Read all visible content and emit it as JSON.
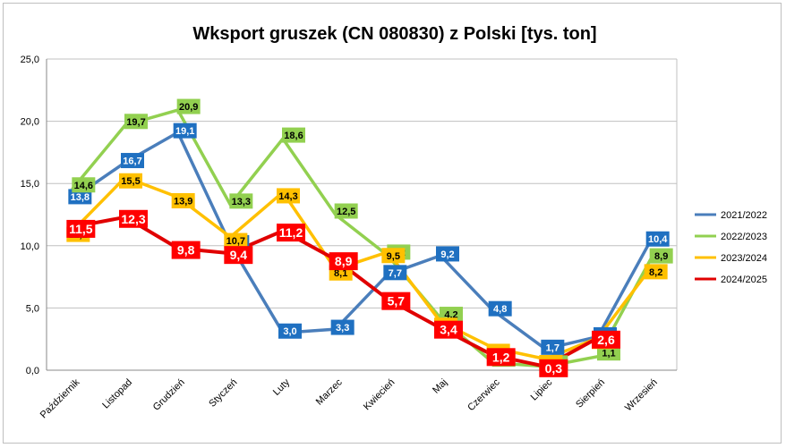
{
  "chart_data": {
    "type": "line",
    "title": "Wksport gruszek (CN 080830) z Polski [tys. ton]",
    "categories": [
      "Październik",
      "Listopad",
      "Grudzień",
      "Styczeń",
      "Luty",
      "Marzec",
      "Kwiecień",
      "Maj",
      "Czerwiec",
      "Lipiec",
      "Sierpień",
      "Wrzesień"
    ],
    "ylim": [
      0,
      25
    ],
    "yticks": [
      "0,0",
      "5,0",
      "10,0",
      "15,0",
      "20,0",
      "25,0"
    ],
    "grid": true,
    "legend_position": "right",
    "series": [
      {
        "name": "2021/2022",
        "color": "#4a7ebb",
        "label_bg": "#1f70c1",
        "label_fg": "#ffffff",
        "values": [
          13.8,
          16.7,
          19.1,
          10.1,
          3.0,
          3.3,
          7.7,
          9.2,
          4.8,
          1.7,
          2.7,
          10.4
        ],
        "labels": [
          "13,8",
          "16,7",
          "19,1",
          "10,1",
          "3,0",
          "3,3",
          "7,7",
          "9,2",
          "4,8",
          "1,7",
          "2,7",
          "10,4"
        ]
      },
      {
        "name": "2022/2023",
        "color": "#92d050",
        "label_bg": "#92d050",
        "label_fg": "#000000",
        "values": [
          14.6,
          19.7,
          20.9,
          13.3,
          18.6,
          12.5,
          9.2,
          4.2,
          0.6,
          0.3,
          1.1,
          8.9
        ],
        "labels": [
          "14,6",
          "19,7",
          "20,9",
          "13,3",
          "18,6",
          "12,5",
          "9,2",
          "4,2",
          "0,6",
          "0,3",
          "1,1",
          "8,9"
        ]
      },
      {
        "name": "2023/2024",
        "color": "#ffc000",
        "label_bg": "#ffc000",
        "label_fg": "#000000",
        "values": [
          11.2,
          15.5,
          13.9,
          10.7,
          14.3,
          8.1,
          9.5,
          3.9,
          1.8,
          0.9,
          2.6,
          8.2
        ],
        "labels": [
          "11,2",
          "15,5",
          "13,9",
          "10,7",
          "14,3",
          "8,1",
          "9,5",
          "3,9",
          "1,8",
          "0,9",
          "2,6",
          "8,2"
        ]
      },
      {
        "name": "2024/2025",
        "color": "#e00000",
        "label_bg": "#ff0000",
        "label_fg": "#ffffff",
        "values": [
          11.5,
          12.3,
          9.8,
          9.4,
          11.2,
          8.9,
          5.7,
          3.4,
          1.2,
          0.3,
          2.6,
          null
        ],
        "labels": [
          "11,5",
          "12,3",
          "9,8",
          "9,4",
          "11,2",
          "8,9",
          "5,7",
          "3,4",
          "1,2",
          "0,3",
          "2,6",
          null
        ]
      }
    ]
  }
}
